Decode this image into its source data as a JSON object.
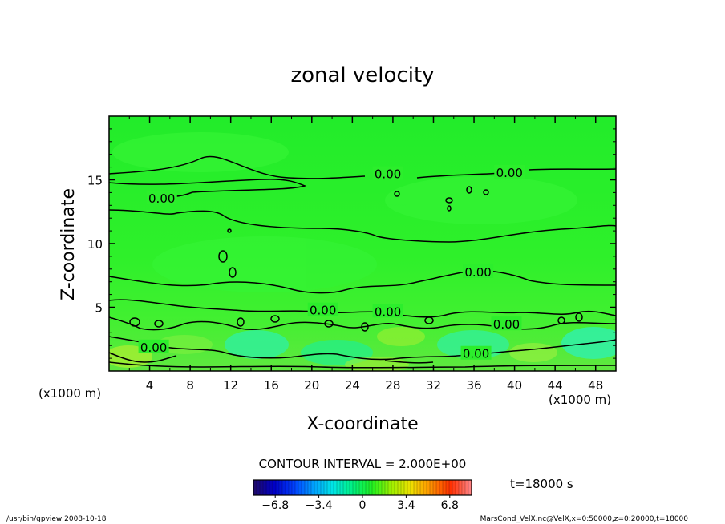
{
  "chart_data": {
    "type": "heatmap",
    "title": "zonal velocity",
    "xlabel": "X-coordinate",
    "ylabel": "Z-coordinate",
    "x_unit_left": "(x1000 m)",
    "x_unit_right": "(x1000 m)",
    "xlim": [
      0,
      50
    ],
    "ylim": [
      0,
      20
    ],
    "xticks": [
      4,
      8,
      12,
      16,
      20,
      24,
      28,
      32,
      36,
      40,
      44,
      48
    ],
    "yticks": [
      5,
      10,
      15
    ],
    "contour_interval_text": "CONTOUR INTERVAL = 2.000E+00",
    "time_text": "t=18000 s",
    "contour_labels": [
      {
        "text": "0.00",
        "x": 27.5,
        "z": 15.5
      },
      {
        "text": "0.00",
        "x": 39.5,
        "z": 15.6
      },
      {
        "text": "0.00",
        "x": 5.2,
        "z": 13.6
      },
      {
        "text": "0.00",
        "x": 36.4,
        "z": 7.8
      },
      {
        "text": "0.00",
        "x": 21.1,
        "z": 4.8
      },
      {
        "text": "0.00",
        "x": 27.5,
        "z": 4.7
      },
      {
        "text": "0.00",
        "x": 39.2,
        "z": 3.7
      },
      {
        "text": "0.00",
        "x": 4.4,
        "z": 1.9
      },
      {
        "text": "0.00",
        "x": 36.2,
        "z": 1.4
      }
    ],
    "colorbar": {
      "min": -8.5,
      "max": 8.5,
      "tick_values": [
        -6.8,
        -3.4,
        0,
        3.4,
        6.8
      ],
      "tick_labels": [
        "−6.8",
        "−3.4",
        "0",
        "3.4",
        "6.8"
      ],
      "colors": [
        "#1e0a6e",
        "#0000c8",
        "#0040ff",
        "#00a0ff",
        "#00e6e6",
        "#00f080",
        "#20f020",
        "#a0f000",
        "#f0e000",
        "#ff9000",
        "#ff3000",
        "#ff8080"
      ]
    }
  },
  "footer": {
    "left": "/usr/bin/gpview   2008-10-18",
    "right": "MarsCond_VelX.nc@VelX,x=0:50000,z=0:20000,t=18000"
  }
}
